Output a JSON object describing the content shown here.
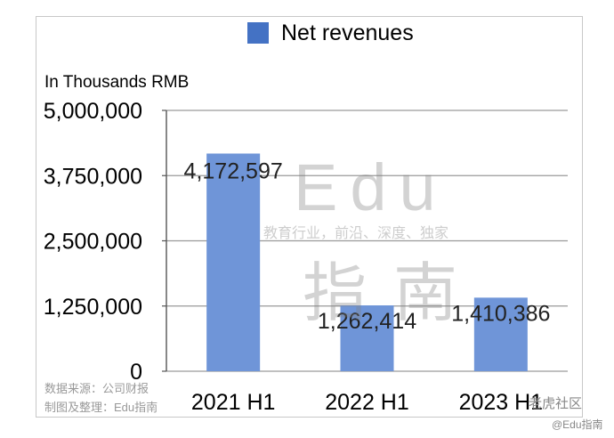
{
  "legend": {
    "label": "Net revenues",
    "color": "#4472c4"
  },
  "unit_label": "In Thousands RMB",
  "watermark": {
    "brand": "Edu",
    "tagline": "教育行业，前沿、深度、独家",
    "name_cn": "指南"
  },
  "source": {
    "line1": "数据来源：公司财报",
    "line2": "制图及整理：Edu指南"
  },
  "corner": {
    "line1": "老虎社区",
    "line2": "@Edu指南"
  },
  "chart_data": {
    "type": "bar",
    "categories": [
      "2021 H1",
      "2022 H1",
      "2023 H1"
    ],
    "series": [
      {
        "name": "Net revenues",
        "values": [
          4172597,
          1262414,
          1410386
        ],
        "color": "#6f95d8"
      }
    ],
    "data_labels": [
      "4,172,597",
      "1,262,414",
      "1,410,386"
    ],
    "y_ticks": [
      0,
      1250000,
      2500000,
      3750000,
      5000000
    ],
    "y_tick_labels": [
      "0",
      "1,250,000",
      "2,500,000",
      "3,750,000",
      "5,000,000"
    ],
    "ylim": [
      0,
      5000000
    ],
    "grid": true,
    "legend_position": "top"
  }
}
